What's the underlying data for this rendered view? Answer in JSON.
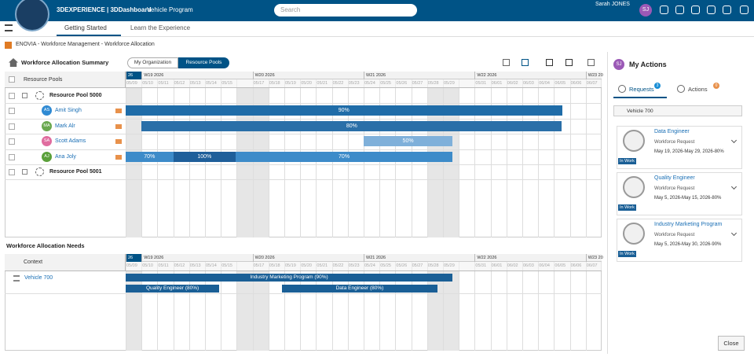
{
  "topbar": {
    "brand": "3DEXPERIENCE | 3DDashboard",
    "app": "Vehicle Program",
    "search_placeholder": "Search",
    "user": "Sarah JONES",
    "user_initials": "SJ"
  },
  "tabs": [
    "Getting Started",
    "Learn the Experience"
  ],
  "breadcrumb": "ENOVIA - Workforce Management - Workforce Allocation",
  "timeline": {
    "weeks": [
      "26",
      "W19 2026",
      "W20 2026",
      "W21 2026",
      "W22 2026",
      "W23 20"
    ],
    "days": [
      "05/09",
      "05/10",
      "05/11",
      "05/12",
      "05/13",
      "05/14",
      "05/15",
      null,
      "05/17",
      "05/18",
      "05/19",
      "05/20",
      "05/21",
      "05/22",
      "05/23",
      "05/24",
      "05/25",
      "05/26",
      "05/27",
      "05/28",
      "05/29",
      null,
      "05/31",
      "06/01",
      "06/02",
      "06/03",
      "06/04",
      "06/05",
      "06/06",
      "06/07"
    ]
  },
  "summary": {
    "title": "Workforce Allocation Summary",
    "toggle": [
      "My Organization",
      "Resource Pools"
    ],
    "column_header": "Resource Pools",
    "rows": [
      {
        "label": "Resource Pool 5000"
      },
      {
        "label": "Amit Singh",
        "initials": "AS",
        "allocations": [
          "90%"
        ]
      },
      {
        "label": "Mark Alr",
        "initials": "MA",
        "allocations": [
          "80%"
        ]
      },
      {
        "label": "Scott Adams",
        "initials": "SA",
        "allocations": [
          "50%"
        ]
      },
      {
        "label": "Ana Joly",
        "initials": "AJ",
        "allocations": [
          "70%",
          "100%",
          "70%"
        ]
      },
      {
        "label": "Resource Pool 5001"
      }
    ]
  },
  "needs": {
    "title": "Workforce Allocation Needs",
    "column_header": "Context",
    "context": "Vehicle 700",
    "bars": [
      "Industry Marketing Program (90%)",
      "Quality Engineer (80%)",
      "Data Engineer (80%)"
    ]
  },
  "actions": {
    "initials": "SJ",
    "title": "My Actions",
    "tabs": [
      {
        "label": "Requests",
        "badge": "3"
      },
      {
        "label": "Actions",
        "badge": "0"
      }
    ],
    "group": "Vehicle 700",
    "cards": [
      {
        "title": "Data Engineer",
        "type": "Workforce Request",
        "detail": "May 19, 2026-May 29, 2026-80%",
        "status": "In Work"
      },
      {
        "title": "Quality Engineer",
        "type": "Workforce Request",
        "detail": "May 5, 2026-May 15, 2026-80%",
        "status": "In Work"
      },
      {
        "title": "Industry Marketing Program",
        "type": "Workforce Request",
        "detail": "May 5, 2026-May 30, 2026-90%",
        "status": "In Work"
      }
    ],
    "close": "Close"
  }
}
